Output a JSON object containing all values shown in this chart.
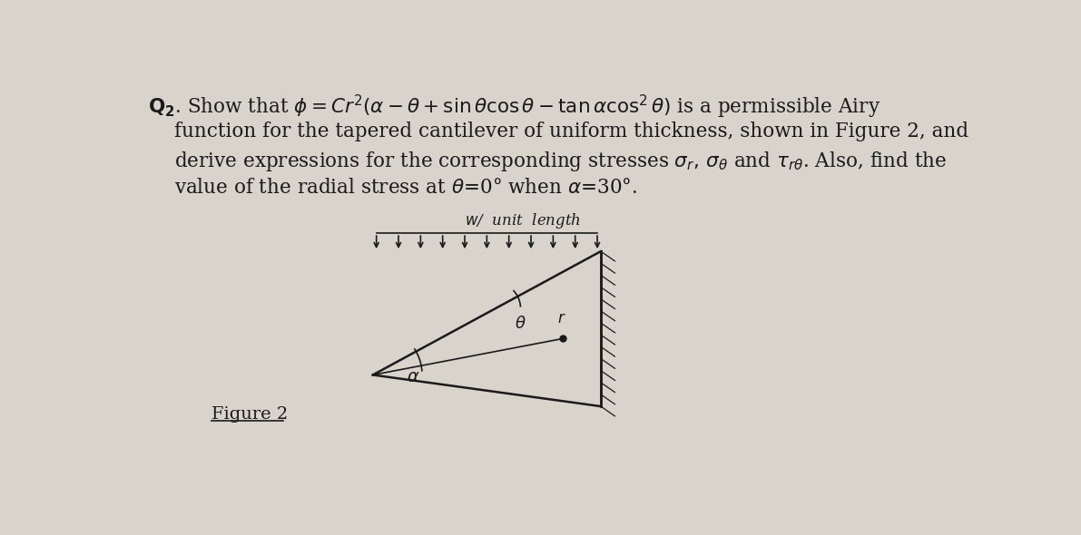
{
  "bg_color": "#d8d4cc",
  "fig_width": 11.91,
  "fig_height": 5.9,
  "text_color": "#1a1a1a",
  "diagram_color": "#1a1a1a",
  "font_size_main": 15.5,
  "font_size_fig": 14,
  "font_size_diagram": 12
}
